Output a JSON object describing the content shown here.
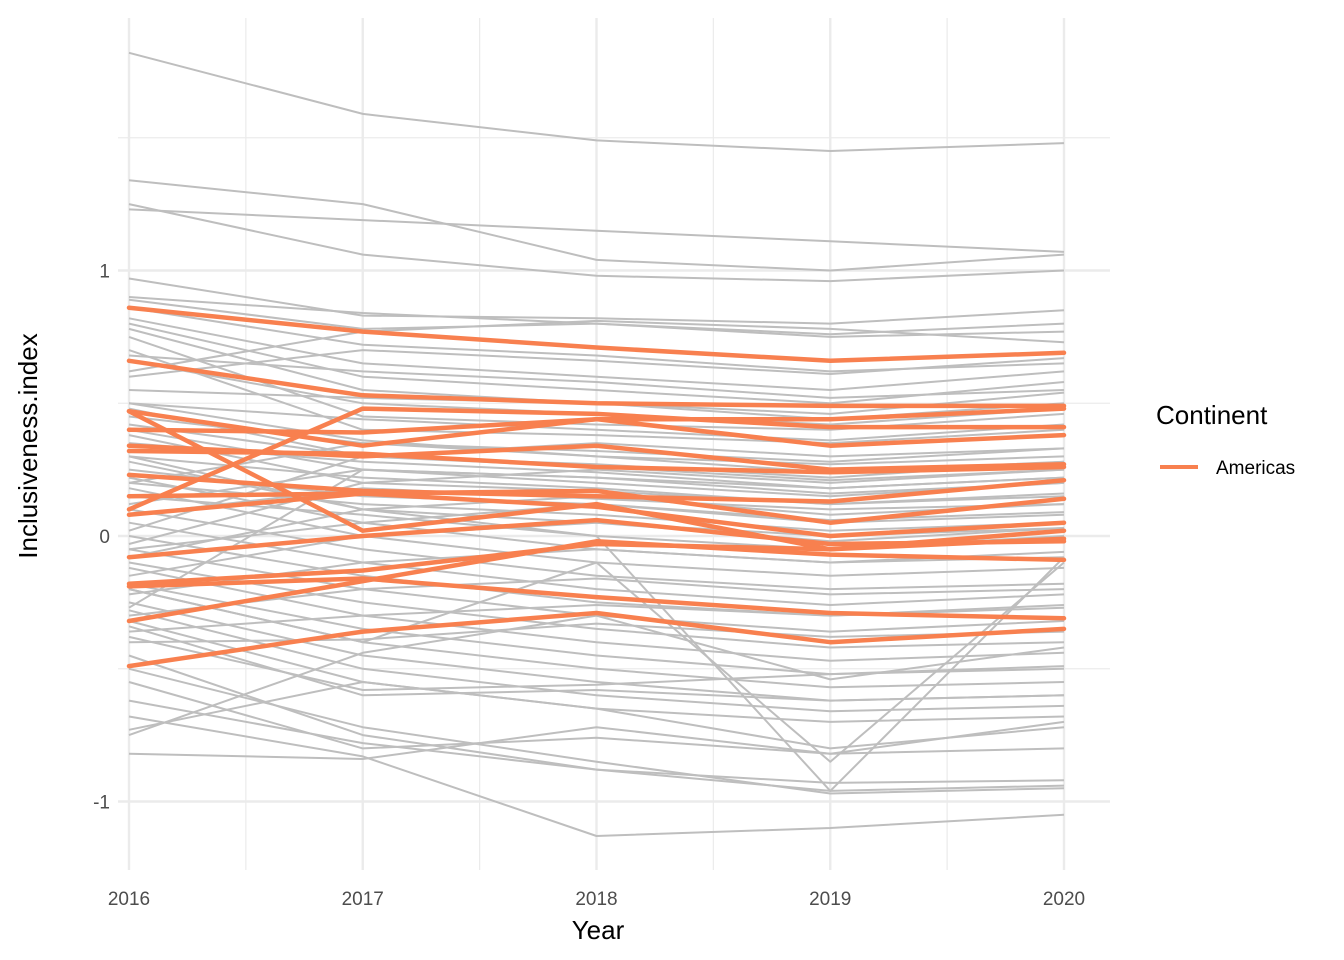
{
  "chart_data": {
    "type": "line",
    "title": "",
    "xlabel": "Year",
    "ylabel": "Inclusiveness.index",
    "x": [
      2016,
      2017,
      2018,
      2019,
      2020
    ],
    "x_tick_labels": [
      "2016",
      "2017",
      "2018",
      "2019",
      "2020"
    ],
    "y_ticks": [
      -1,
      0,
      1
    ],
    "y_tick_labels": [
      "-1",
      "0",
      "1"
    ],
    "ylim": [
      -1.26,
      1.94
    ],
    "grid": true,
    "legend": {
      "title": "Continent",
      "placement": "right",
      "entries": [
        {
          "label": "Americas",
          "color": "#F8804F"
        }
      ]
    },
    "colors": {
      "background_series": "#BEBEBE",
      "highlight": "#F8804F",
      "grid": "#EBEBEB"
    },
    "background_series": [
      [
        1.82,
        1.59,
        1.49,
        1.45,
        1.48
      ],
      [
        1.34,
        1.25,
        1.04,
        1.0,
        1.06
      ],
      [
        1.25,
        1.06,
        0.98,
        0.96,
        1.0
      ],
      [
        1.23,
        1.19,
        1.15,
        1.11,
        1.07
      ],
      [
        0.97,
        0.83,
        0.82,
        0.8,
        0.85
      ],
      [
        0.89,
        0.78,
        0.8,
        0.76,
        0.8
      ],
      [
        0.86,
        0.72,
        0.68,
        0.62,
        0.65
      ],
      [
        0.82,
        0.65,
        0.6,
        0.55,
        0.62
      ],
      [
        0.8,
        0.6,
        0.55,
        0.5,
        0.58
      ],
      [
        0.78,
        0.55,
        0.5,
        0.46,
        0.54
      ],
      [
        0.75,
        0.45,
        0.42,
        0.4,
        0.46
      ],
      [
        0.7,
        0.4,
        0.38,
        0.35,
        0.4
      ],
      [
        0.66,
        0.5,
        0.46,
        0.42,
        0.48
      ],
      [
        0.62,
        0.77,
        0.81,
        0.78,
        0.73
      ],
      [
        0.6,
        0.7,
        0.66,
        0.61,
        0.67
      ],
      [
        0.55,
        0.52,
        0.5,
        0.44,
        0.5
      ],
      [
        0.5,
        0.44,
        0.4,
        0.36,
        0.42
      ],
      [
        0.48,
        0.3,
        0.27,
        0.22,
        0.28
      ],
      [
        0.45,
        0.35,
        0.32,
        0.28,
        0.33
      ],
      [
        0.42,
        0.3,
        0.26,
        0.21,
        0.25
      ],
      [
        0.4,
        0.25,
        0.2,
        0.15,
        0.2
      ],
      [
        0.38,
        0.2,
        0.17,
        0.12,
        0.16
      ],
      [
        0.35,
        0.28,
        0.24,
        0.18,
        0.22
      ],
      [
        0.3,
        0.22,
        0.18,
        0.12,
        0.15
      ],
      [
        0.28,
        0.1,
        0.05,
        -0.02,
        0.03
      ],
      [
        0.25,
        0.15,
        0.12,
        0.05,
        0.08
      ],
      [
        0.22,
        0.05,
        -0.05,
        -0.1,
        -0.06
      ],
      [
        0.2,
        0.12,
        0.08,
        0.02,
        0.05
      ],
      [
        0.18,
        0.0,
        -0.1,
        -0.15,
        -0.12
      ],
      [
        0.15,
        0.08,
        0.0,
        -0.05,
        0.0
      ],
      [
        0.12,
        0.25,
        0.22,
        0.18,
        0.22
      ],
      [
        0.1,
        -0.05,
        -0.15,
        -0.2,
        -0.18
      ],
      [
        0.08,
        0.18,
        0.14,
        0.1,
        0.12
      ],
      [
        0.05,
        -0.1,
        -0.2,
        -0.26,
        -0.22
      ],
      [
        0.02,
        0.3,
        0.35,
        0.3,
        0.33
      ],
      [
        0.0,
        -0.15,
        -0.25,
        -0.3,
        -0.26
      ],
      [
        -0.03,
        0.2,
        0.25,
        0.2,
        0.25
      ],
      [
        -0.05,
        -0.2,
        -0.3,
        -0.36,
        -0.32
      ],
      [
        -0.08,
        0.1,
        0.15,
        0.08,
        0.12
      ],
      [
        -0.1,
        -0.25,
        -0.35,
        -0.42,
        -0.4
      ],
      [
        -0.12,
        -0.3,
        -0.4,
        -0.47,
        -0.44
      ],
      [
        -0.15,
        0.0,
        0.05,
        0.0,
        0.03
      ],
      [
        -0.18,
        -0.35,
        -0.45,
        -0.52,
        -0.5
      ],
      [
        -0.2,
        -0.4,
        -0.5,
        -0.57,
        -0.55
      ],
      [
        -0.22,
        -0.1,
        -0.05,
        -0.1,
        -0.08
      ],
      [
        -0.25,
        -0.45,
        -0.55,
        -0.62,
        -0.6
      ],
      [
        -0.27,
        0.25,
        0.22,
        0.16,
        0.2
      ],
      [
        -0.28,
        -0.5,
        -0.6,
        -0.66,
        -0.64
      ],
      [
        -0.3,
        -0.2,
        -0.16,
        -0.22,
        -0.2
      ],
      [
        -0.32,
        -0.55,
        -0.65,
        -0.7,
        -0.68
      ],
      [
        -0.34,
        -0.6,
        -0.58,
        -0.62,
        -0.6
      ],
      [
        -0.36,
        -0.3,
        -0.26,
        -0.3,
        -0.27
      ],
      [
        -0.38,
        -0.58,
        -0.56,
        -0.52,
        -0.49
      ],
      [
        -0.4,
        -0.39,
        -0.33,
        -0.38,
        -0.36
      ],
      [
        -0.45,
        -0.75,
        -0.88,
        -0.96,
        -0.94
      ],
      [
        -0.5,
        -0.72,
        -0.85,
        -0.97,
        -0.95
      ],
      [
        -0.55,
        -0.8,
        -0.76,
        -0.82,
        -0.8
      ],
      [
        -0.62,
        -0.78,
        -0.88,
        -0.93,
        -0.92
      ],
      [
        -0.68,
        -0.83,
        -1.13,
        -1.1,
        -1.05
      ],
      [
        -0.73,
        -0.55,
        -0.65,
        -0.8,
        -0.72
      ],
      [
        -0.75,
        -0.44,
        -0.3,
        -0.54,
        -0.42
      ],
      [
        -0.82,
        -0.84,
        -0.72,
        -0.82,
        -0.7
      ],
      [
        0.3,
        0.1,
        0.0,
        -0.96,
        -0.08
      ],
      [
        -0.2,
        -0.4,
        -0.1,
        -0.85,
        -0.1
      ],
      [
        0.5,
        0.36,
        0.3,
        0.24,
        0.28
      ],
      [
        0.68,
        0.62,
        0.58,
        0.52,
        0.55
      ],
      [
        0.9,
        0.84,
        0.8,
        0.75,
        0.77
      ],
      [
        0.2,
        0.35,
        0.3,
        0.27,
        0.3
      ],
      [
        -0.05,
        0.05,
        0.12,
        0.06,
        0.09
      ]
    ],
    "series": [
      {
        "values": [
          0.86,
          0.77,
          0.71,
          0.66,
          0.69
        ]
      },
      {
        "values": [
          0.66,
          0.53,
          0.5,
          0.49,
          0.49
        ]
      },
      {
        "values": [
          0.47,
          0.34,
          0.44,
          0.44,
          0.48
        ]
      },
      {
        "values": [
          0.4,
          0.39,
          0.44,
          0.34,
          0.38
        ]
      },
      {
        "values": [
          0.34,
          0.3,
          0.34,
          0.25,
          0.27
        ]
      },
      {
        "values": [
          0.32,
          0.31,
          0.26,
          0.24,
          0.26
        ]
      },
      {
        "values": [
          0.23,
          0.17,
          0.15,
          0.13,
          0.21
        ]
      },
      {
        "values": [
          0.15,
          0.16,
          0.17,
          0.05,
          0.14
        ]
      },
      {
        "values": [
          0.1,
          0.48,
          0.46,
          0.41,
          0.41
        ]
      },
      {
        "values": [
          0.08,
          0.16,
          0.11,
          0.0,
          0.05
        ]
      },
      {
        "values": [
          0.47,
          0.02,
          0.12,
          -0.05,
          0.02
        ]
      },
      {
        "values": [
          -0.08,
          0.0,
          0.06,
          -0.03,
          -0.02
        ]
      },
      {
        "values": [
          -0.19,
          -0.16,
          -0.23,
          -0.29,
          -0.31
        ]
      },
      {
        "values": [
          -0.18,
          -0.13,
          -0.03,
          -0.05,
          -0.01
        ]
      },
      {
        "values": [
          -0.32,
          -0.17,
          -0.02,
          -0.07,
          -0.09
        ]
      },
      {
        "values": [
          -0.49,
          -0.36,
          -0.29,
          -0.4,
          -0.35
        ]
      }
    ]
  }
}
